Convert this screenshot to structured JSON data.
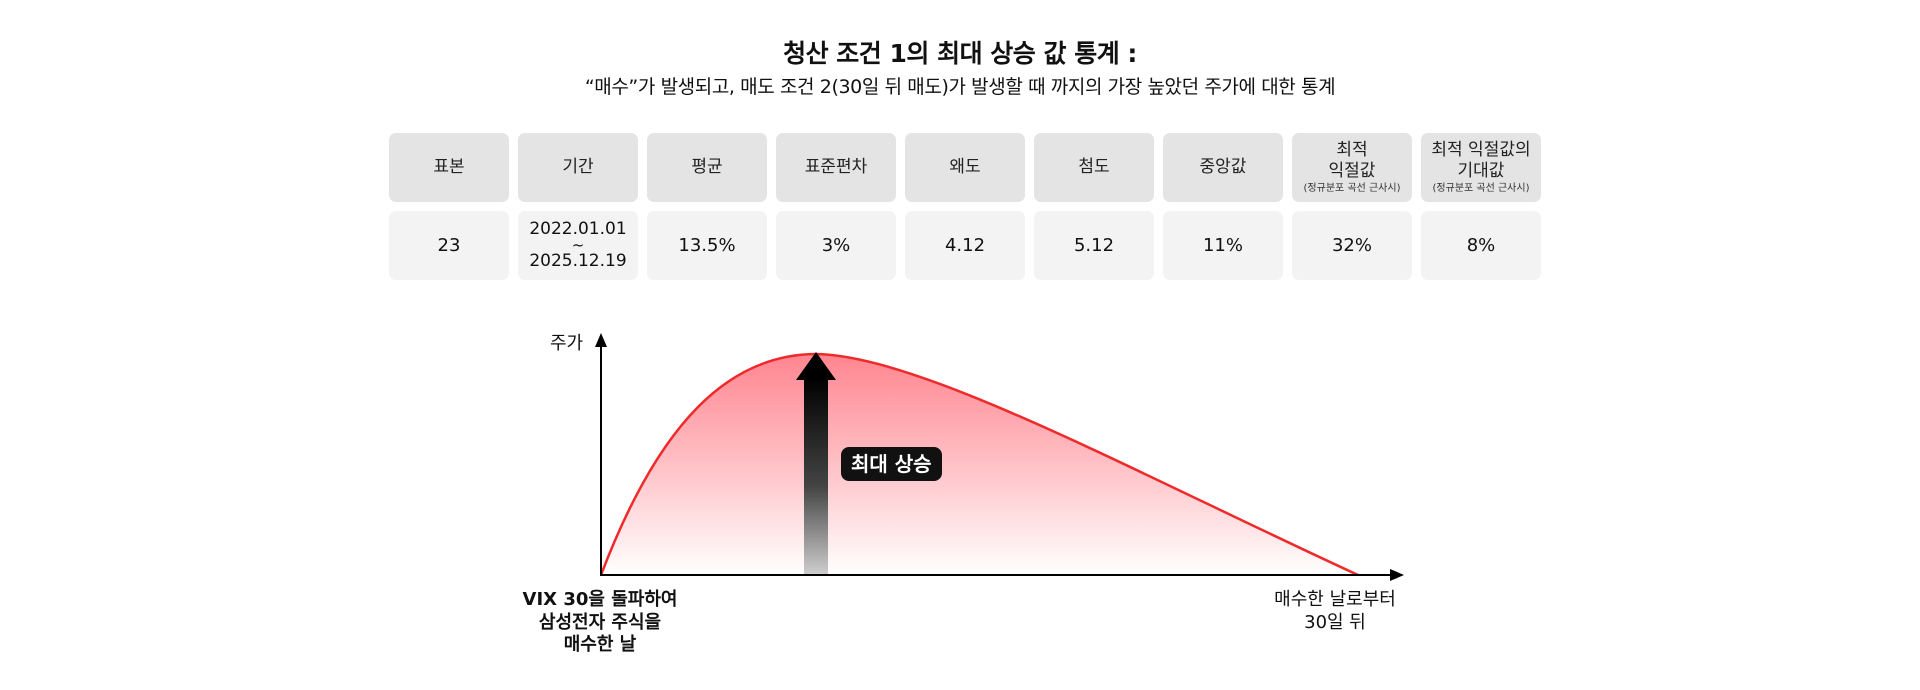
{
  "title": "청산 조건 1의 최대 상승 값 통계 :",
  "subtitle": "“매수”가 발생되고, 매도 조건 2(30일 뒤 매도)가 발생할 때 까지의 가장 높았던 주가에 대한 통계",
  "stats": {
    "headers": [
      {
        "label": "표본"
      },
      {
        "label": "기간"
      },
      {
        "label": "평균"
      },
      {
        "label": "표준편차"
      },
      {
        "label": "왜도"
      },
      {
        "label": "첨도"
      },
      {
        "label": "중앙값"
      },
      {
        "label": "최적\n익절값",
        "note": "(정규분포 곡선 근사시)"
      },
      {
        "label": "최적 익절값의\n기대값",
        "note": "(정규분포 곡선 근사시)"
      }
    ],
    "values": {
      "sample": "23",
      "period_start": "2022.01.01",
      "period_sep": "~",
      "period_end": "2025.12.19",
      "mean": "13.5%",
      "std": "3%",
      "skewness": "4.12",
      "kurtosis": "5.12",
      "median": "11%",
      "optimal_take_profit": "32%",
      "optimal_expected": "8%"
    }
  },
  "diagram": {
    "y_axis_label": "주가",
    "x_start_label": "VIX 30을 돌파하여\n삼성전자 주식을\n매수한 날",
    "x_end_label": "매수한 날로부터\n30일 뒤",
    "arrow_label": "최대 상승",
    "colors": {
      "curve": "#ee2a2a",
      "fill_top": "#ff7f8a",
      "fill_bottom": "#ffffff",
      "arrow_top": "#000000",
      "arrow_bottom": "#cfcfcf",
      "axis": "#000000"
    }
  }
}
